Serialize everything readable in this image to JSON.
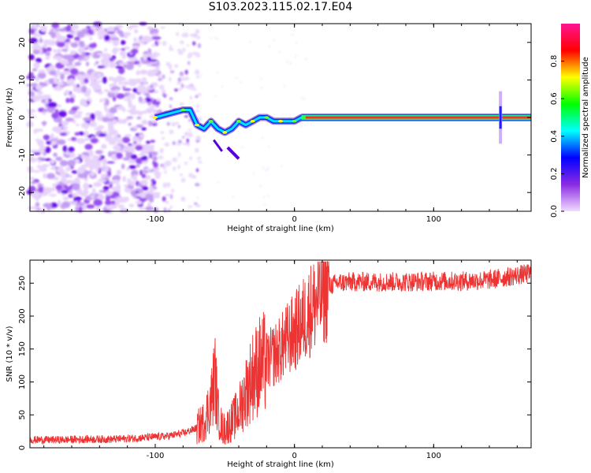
{
  "title": "S103.2023.115.02.17.E04",
  "chart_data": [
    {
      "type": "heatmap",
      "xlabel": "Height of straight line (km)",
      "ylabel": "Frequency (Hz)",
      "xlim": [
        -190,
        170
      ],
      "ylim": [
        -25,
        25
      ],
      "xticks": [
        -100,
        0,
        100
      ],
      "yticks": [
        -20,
        -10,
        0,
        10,
        20
      ],
      "colorbar": {
        "label": "Normalized spectral amplitude",
        "range": [
          0,
          1
        ],
        "ticks": [
          0.0,
          0.2,
          0.4,
          0.6,
          0.8
        ],
        "colormap": [
          "#f2dcff",
          "#8a2be2",
          "#0000ff",
          "#00ffff",
          "#00ff00",
          "#ffff00",
          "#ff0000",
          "#ff1493"
        ]
      },
      "description_regions": [
        {
          "x_range": [
            -190,
            -100
          ],
          "frequency_range": [
            -25,
            25
          ],
          "amplitude": "low noise"
        },
        {
          "x_range": [
            -100,
            10
          ],
          "frequency_range": [
            -10,
            4
          ],
          "amplitude": "tone emerging"
        },
        {
          "x_range": [
            10,
            170
          ],
          "frequency_range": [
            0,
            0
          ],
          "amplitude": 0.9
        }
      ],
      "tone_track": {
        "x": [
          -100,
          -90,
          -80,
          -75,
          -70,
          -65,
          -60,
          -55,
          -50,
          -45,
          -40,
          -35,
          -30,
          -25,
          -20,
          -15,
          -10,
          -5,
          0,
          5,
          10
        ],
        "freq": [
          0,
          1,
          2,
          2,
          -2,
          -3,
          -1,
          -3,
          -4,
          -3,
          -1,
          -2,
          -1,
          0,
          0,
          -1,
          -1,
          -1,
          -1,
          0,
          0
        ]
      }
    },
    {
      "type": "line",
      "xlabel": "Height of straight line (km)",
      "ylabel": "SNR (10 * v/v)",
      "xlim": [
        -190,
        170
      ],
      "ylim": [
        0,
        285
      ],
      "xticks": [
        -100,
        0,
        100
      ],
      "yticks": [
        0,
        50,
        100,
        150,
        200,
        250
      ],
      "color": "#ee3333",
      "series": [
        {
          "x": [
            -190,
            -170,
            -150,
            -130,
            -110,
            -90,
            -80,
            -70,
            -65,
            -60,
            -57,
            -55,
            -52,
            -50,
            -45,
            -40,
            -35,
            -30,
            -25,
            -20,
            -15,
            -10,
            -5,
            0,
            5,
            10,
            15,
            20,
            25,
            30,
            40,
            60,
            80,
            100,
            120,
            140,
            160,
            170
          ],
          "y": [
            12,
            12,
            13,
            13,
            15,
            18,
            22,
            30,
            40,
            70,
            110,
            55,
            30,
            28,
            40,
            55,
            85,
            110,
            125,
            130,
            140,
            150,
            165,
            175,
            190,
            205,
            220,
            235,
            245,
            250,
            252,
            252,
            252,
            253,
            253,
            255,
            262,
            265
          ]
        }
      ]
    }
  ]
}
